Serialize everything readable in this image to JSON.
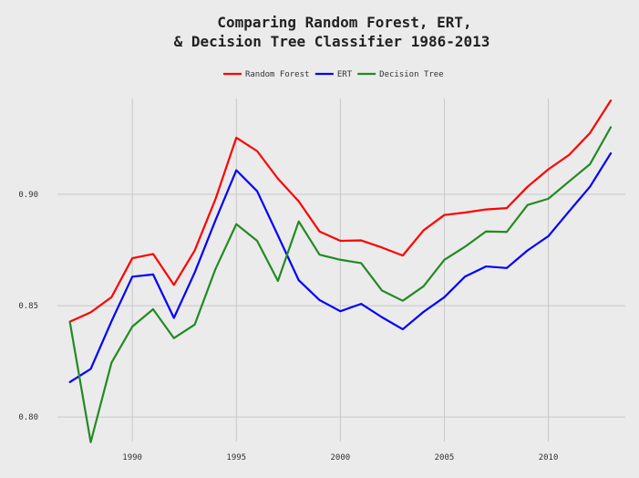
{
  "chart_data": {
    "type": "line",
    "title_lines": [
      "Comparing Random Forest, ERT,",
      "& Decision Tree Classifier 1986-2013"
    ],
    "xlabel": "",
    "ylabel": "",
    "x": [
      1987,
      1988,
      1989,
      1990,
      1991,
      1992,
      1993,
      1994,
      1995,
      1996,
      1997,
      1998,
      1999,
      2000,
      2001,
      2002,
      2003,
      2004,
      2005,
      2006,
      2007,
      2008,
      2009,
      2010,
      2011,
      2012,
      2013
    ],
    "xticks": [
      1990,
      1995,
      2000,
      2005,
      2010
    ],
    "yticks": [
      0.8,
      0.85,
      0.9
    ],
    "ytick_labels": [
      "0.80",
      "0.85",
      "0.90"
    ],
    "xlim": [
      1986.4,
      2013.7
    ],
    "ylim": [
      0.789,
      0.943
    ],
    "grid": true,
    "legend_position": "top-center",
    "series": [
      {
        "name": "Random Forest",
        "color": "#ff0000",
        "values": [
          0.8428,
          0.847,
          0.8538,
          0.8713,
          0.8732,
          0.8593,
          0.8748,
          0.8979,
          0.9254,
          0.9194,
          0.907,
          0.8968,
          0.8833,
          0.8791,
          0.8793,
          0.8761,
          0.8725,
          0.8838,
          0.8907,
          0.8918,
          0.8932,
          0.8938,
          0.9034,
          0.9112,
          0.9177,
          0.9275,
          0.9421
        ]
      },
      {
        "name": "ERT",
        "color": "#0000ff",
        "values": [
          0.8157,
          0.8216,
          0.843,
          0.863,
          0.864,
          0.8445,
          0.8649,
          0.8884,
          0.9108,
          0.9014,
          0.8815,
          0.8614,
          0.8525,
          0.8475,
          0.8508,
          0.8448,
          0.8394,
          0.8472,
          0.8538,
          0.8631,
          0.8676,
          0.8669,
          0.8748,
          0.8812,
          0.8924,
          0.9034,
          0.9184
        ]
      },
      {
        "name": "Decision Tree",
        "color": "#228b22",
        "values": [
          0.8426,
          0.7887,
          0.8244,
          0.8406,
          0.8484,
          0.8354,
          0.8415,
          0.8665,
          0.8866,
          0.8791,
          0.8611,
          0.8878,
          0.8729,
          0.8706,
          0.8691,
          0.8568,
          0.8522,
          0.8587,
          0.8706,
          0.8765,
          0.8833,
          0.8831,
          0.8952,
          0.898,
          0.9058,
          0.9135,
          0.9301
        ]
      }
    ]
  }
}
